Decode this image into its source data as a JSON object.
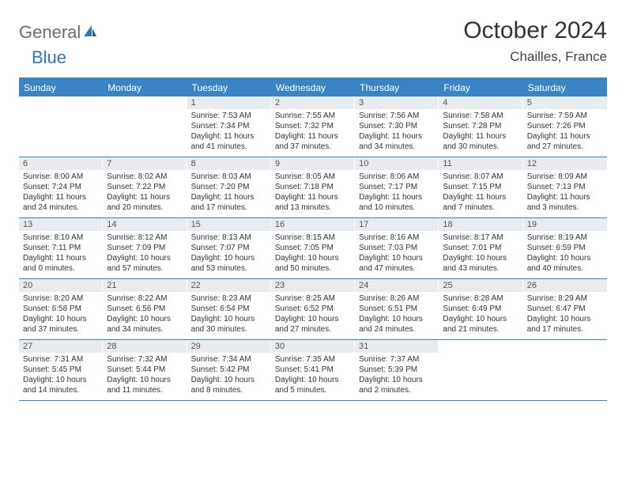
{
  "brand": {
    "part1": "General",
    "part2": "Blue"
  },
  "title": {
    "month": "October 2024",
    "location": "Chailles, France"
  },
  "colors": {
    "accent": "#3b84c4",
    "shade": "#e9ecef",
    "text": "#333333"
  },
  "day_headers": [
    "Sunday",
    "Monday",
    "Tuesday",
    "Wednesday",
    "Thursday",
    "Friday",
    "Saturday"
  ],
  "weeks": [
    [
      {
        "empty": true
      },
      {
        "empty": true
      },
      {
        "day": "1",
        "sunrise": "Sunrise: 7:53 AM",
        "sunset": "Sunset: 7:34 PM",
        "daylight": "Daylight: 11 hours and 41 minutes."
      },
      {
        "day": "2",
        "sunrise": "Sunrise: 7:55 AM",
        "sunset": "Sunset: 7:32 PM",
        "daylight": "Daylight: 11 hours and 37 minutes."
      },
      {
        "day": "3",
        "sunrise": "Sunrise: 7:56 AM",
        "sunset": "Sunset: 7:30 PM",
        "daylight": "Daylight: 11 hours and 34 minutes."
      },
      {
        "day": "4",
        "sunrise": "Sunrise: 7:58 AM",
        "sunset": "Sunset: 7:28 PM",
        "daylight": "Daylight: 11 hours and 30 minutes."
      },
      {
        "day": "5",
        "sunrise": "Sunrise: 7:59 AM",
        "sunset": "Sunset: 7:26 PM",
        "daylight": "Daylight: 11 hours and 27 minutes."
      }
    ],
    [
      {
        "day": "6",
        "sunrise": "Sunrise: 8:00 AM",
        "sunset": "Sunset: 7:24 PM",
        "daylight": "Daylight: 11 hours and 24 minutes."
      },
      {
        "day": "7",
        "sunrise": "Sunrise: 8:02 AM",
        "sunset": "Sunset: 7:22 PM",
        "daylight": "Daylight: 11 hours and 20 minutes."
      },
      {
        "day": "8",
        "sunrise": "Sunrise: 8:03 AM",
        "sunset": "Sunset: 7:20 PM",
        "daylight": "Daylight: 11 hours and 17 minutes."
      },
      {
        "day": "9",
        "sunrise": "Sunrise: 8:05 AM",
        "sunset": "Sunset: 7:18 PM",
        "daylight": "Daylight: 11 hours and 13 minutes."
      },
      {
        "day": "10",
        "sunrise": "Sunrise: 8:06 AM",
        "sunset": "Sunset: 7:17 PM",
        "daylight": "Daylight: 11 hours and 10 minutes."
      },
      {
        "day": "11",
        "sunrise": "Sunrise: 8:07 AM",
        "sunset": "Sunset: 7:15 PM",
        "daylight": "Daylight: 11 hours and 7 minutes."
      },
      {
        "day": "12",
        "sunrise": "Sunrise: 8:09 AM",
        "sunset": "Sunset: 7:13 PM",
        "daylight": "Daylight: 11 hours and 3 minutes."
      }
    ],
    [
      {
        "day": "13",
        "sunrise": "Sunrise: 8:10 AM",
        "sunset": "Sunset: 7:11 PM",
        "daylight": "Daylight: 11 hours and 0 minutes."
      },
      {
        "day": "14",
        "sunrise": "Sunrise: 8:12 AM",
        "sunset": "Sunset: 7:09 PM",
        "daylight": "Daylight: 10 hours and 57 minutes."
      },
      {
        "day": "15",
        "sunrise": "Sunrise: 8:13 AM",
        "sunset": "Sunset: 7:07 PM",
        "daylight": "Daylight: 10 hours and 53 minutes."
      },
      {
        "day": "16",
        "sunrise": "Sunrise: 8:15 AM",
        "sunset": "Sunset: 7:05 PM",
        "daylight": "Daylight: 10 hours and 50 minutes."
      },
      {
        "day": "17",
        "sunrise": "Sunrise: 8:16 AM",
        "sunset": "Sunset: 7:03 PM",
        "daylight": "Daylight: 10 hours and 47 minutes."
      },
      {
        "day": "18",
        "sunrise": "Sunrise: 8:17 AM",
        "sunset": "Sunset: 7:01 PM",
        "daylight": "Daylight: 10 hours and 43 minutes."
      },
      {
        "day": "19",
        "sunrise": "Sunrise: 8:19 AM",
        "sunset": "Sunset: 6:59 PM",
        "daylight": "Daylight: 10 hours and 40 minutes."
      }
    ],
    [
      {
        "day": "20",
        "sunrise": "Sunrise: 8:20 AM",
        "sunset": "Sunset: 6:58 PM",
        "daylight": "Daylight: 10 hours and 37 minutes."
      },
      {
        "day": "21",
        "sunrise": "Sunrise: 8:22 AM",
        "sunset": "Sunset: 6:56 PM",
        "daylight": "Daylight: 10 hours and 34 minutes."
      },
      {
        "day": "22",
        "sunrise": "Sunrise: 8:23 AM",
        "sunset": "Sunset: 6:54 PM",
        "daylight": "Daylight: 10 hours and 30 minutes."
      },
      {
        "day": "23",
        "sunrise": "Sunrise: 8:25 AM",
        "sunset": "Sunset: 6:52 PM",
        "daylight": "Daylight: 10 hours and 27 minutes."
      },
      {
        "day": "24",
        "sunrise": "Sunrise: 8:26 AM",
        "sunset": "Sunset: 6:51 PM",
        "daylight": "Daylight: 10 hours and 24 minutes."
      },
      {
        "day": "25",
        "sunrise": "Sunrise: 8:28 AM",
        "sunset": "Sunset: 6:49 PM",
        "daylight": "Daylight: 10 hours and 21 minutes."
      },
      {
        "day": "26",
        "sunrise": "Sunrise: 8:29 AM",
        "sunset": "Sunset: 6:47 PM",
        "daylight": "Daylight: 10 hours and 17 minutes."
      }
    ],
    [
      {
        "day": "27",
        "sunrise": "Sunrise: 7:31 AM",
        "sunset": "Sunset: 5:45 PM",
        "daylight": "Daylight: 10 hours and 14 minutes."
      },
      {
        "day": "28",
        "sunrise": "Sunrise: 7:32 AM",
        "sunset": "Sunset: 5:44 PM",
        "daylight": "Daylight: 10 hours and 11 minutes."
      },
      {
        "day": "29",
        "sunrise": "Sunrise: 7:34 AM",
        "sunset": "Sunset: 5:42 PM",
        "daylight": "Daylight: 10 hours and 8 minutes."
      },
      {
        "day": "30",
        "sunrise": "Sunrise: 7:35 AM",
        "sunset": "Sunset: 5:41 PM",
        "daylight": "Daylight: 10 hours and 5 minutes."
      },
      {
        "day": "31",
        "sunrise": "Sunrise: 7:37 AM",
        "sunset": "Sunset: 5:39 PM",
        "daylight": "Daylight: 10 hours and 2 minutes."
      },
      {
        "empty": true
      },
      {
        "empty": true
      }
    ]
  ]
}
